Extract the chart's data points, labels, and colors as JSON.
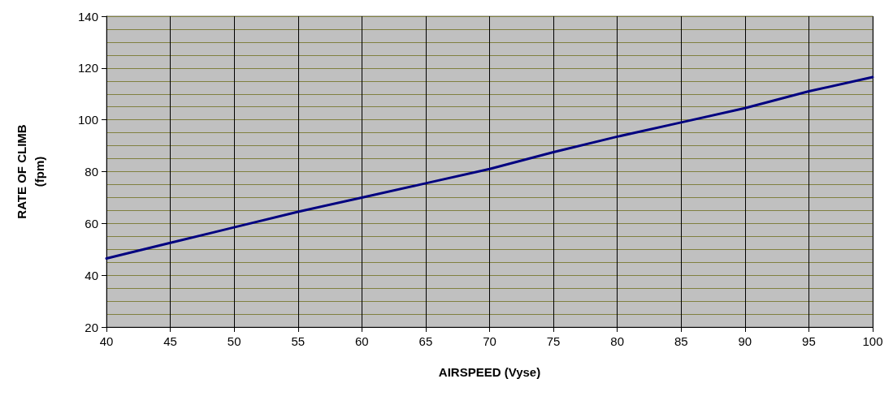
{
  "chart_data": {
    "type": "line",
    "xlabel": "AIRSPEED (Vyse)",
    "ylabel": "RATE OF CLIMB\n(fpm)",
    "x": [
      40,
      45,
      50,
      55,
      60,
      65,
      70,
      75,
      80,
      85,
      90,
      95,
      100
    ],
    "series": [
      {
        "color": "#000080",
        "values": [
          46.5,
          52.5,
          58.5,
          64.5,
          70,
          75.5,
          81,
          87.5,
          93.5,
          99,
          104.5,
          111,
          116.5
        ]
      }
    ],
    "xlim": [
      40,
      100
    ],
    "xticks": [
      40,
      45,
      50,
      55,
      60,
      65,
      70,
      75,
      80,
      85,
      90,
      95,
      100
    ],
    "ylim": [
      20,
      140
    ],
    "yticks": [
      20,
      40,
      60,
      80,
      100,
      120,
      140
    ],
    "grid": true,
    "marker": "none",
    "line_style": "solid"
  }
}
